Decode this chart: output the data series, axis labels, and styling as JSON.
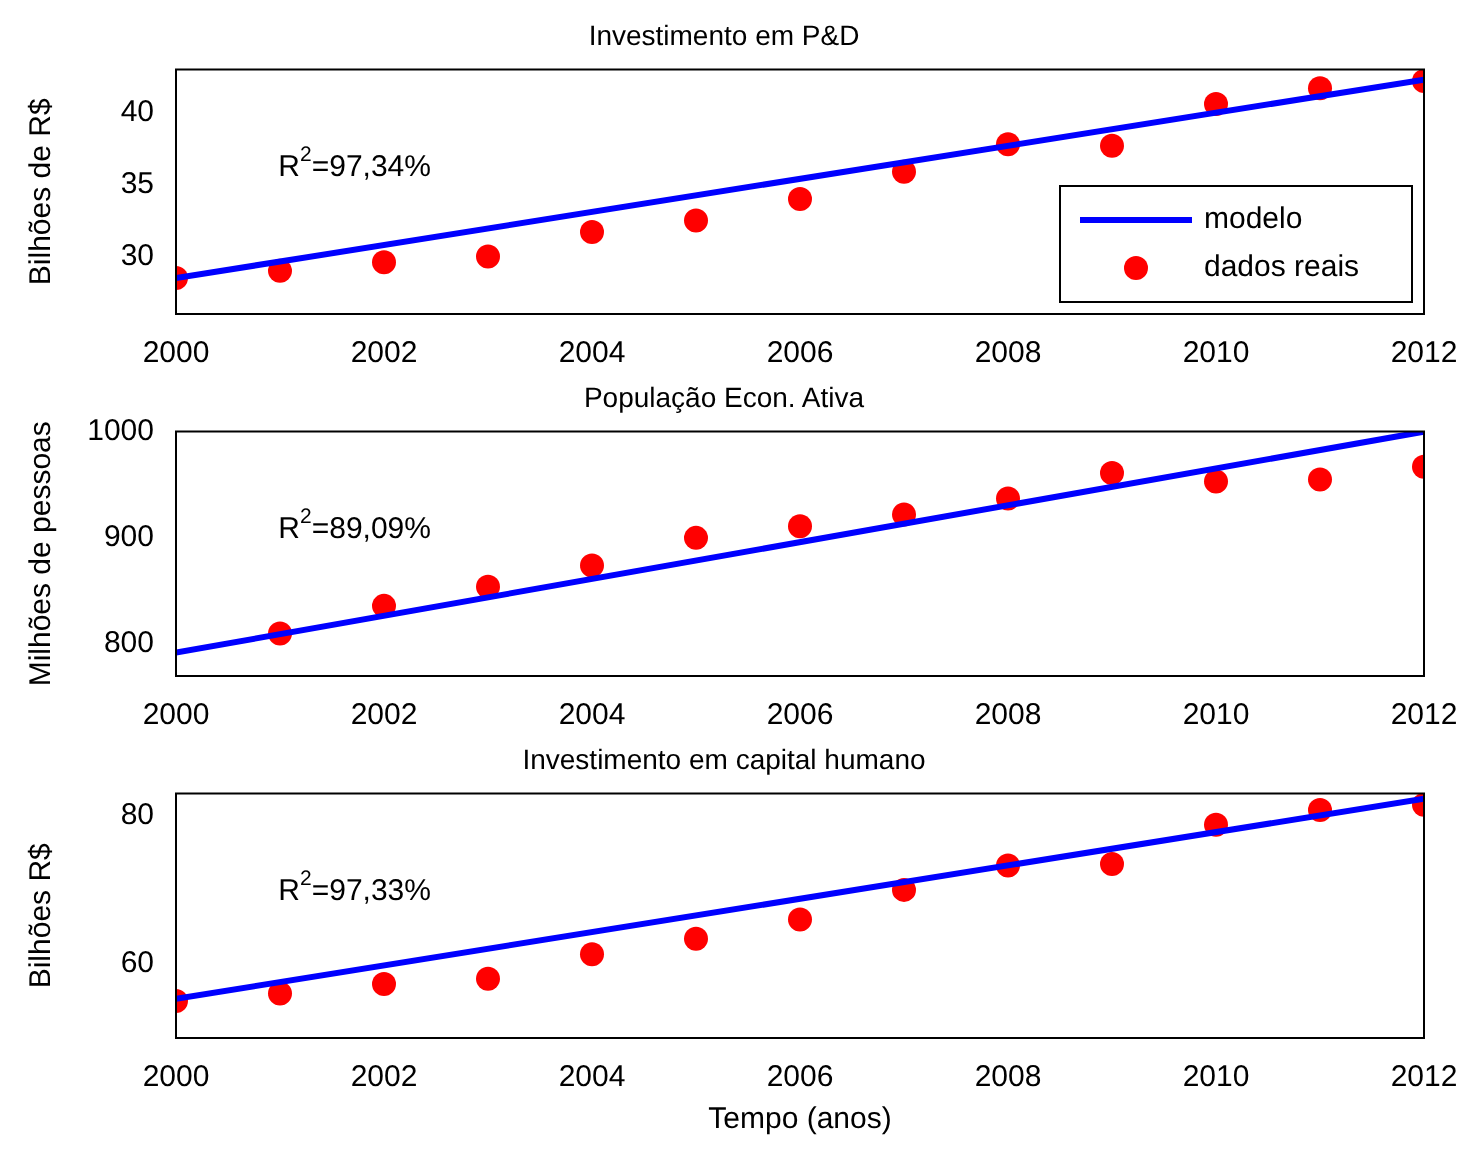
{
  "chart_data": [
    {
      "type": "scatter",
      "title": "Investimento em P&D",
      "ylabel": "Bilhões de R$",
      "x": [
        2000,
        2001,
        2002,
        2003,
        2004,
        2005,
        2006,
        2007,
        2008,
        2009,
        2010,
        2011,
        2012
      ],
      "xlim": [
        2000,
        2012
      ],
      "xticks": [
        2000,
        2002,
        2004,
        2006,
        2008,
        2010,
        2012
      ],
      "ylim": [
        26,
        43
      ],
      "yticks": [
        30,
        35,
        40
      ],
      "grid": false,
      "legend": "bottom right",
      "annotations": [
        "R$^{2}$=97,34%"
      ],
      "series": [
        {
          "name": "modelo",
          "type": "line",
          "color": "#0000ff",
          "marker": "none",
          "line_style": "solid",
          "x": [
            2000,
            2012
          ],
          "values": [
            28.5,
            42.3
          ]
        },
        {
          "name": "dados reais",
          "type": "scatter",
          "color": "#ff0000",
          "marker": "circle",
          "values": [
            28.5,
            29,
            29.6,
            30,
            31.7,
            32.5,
            34,
            35.9,
            37.8,
            37.7,
            40.6,
            41.7,
            42.2
          ]
        }
      ]
    },
    {
      "type": "scatter",
      "title": "População Econ. Ativa",
      "ylabel": "Milhões de pessoas",
      "xlim": [
        2000,
        2012
      ],
      "xticks": [
        2000,
        2002,
        2004,
        2006,
        2008,
        2010,
        2012
      ],
      "ylim": [
        770,
        1000
      ],
      "yticks": [
        800,
        900,
        1000
      ],
      "grid": false,
      "annotations": [
        "R$^{2}$=89,09%"
      ],
      "series": [
        {
          "type": "line",
          "color": "#0000ff",
          "marker": "none",
          "line_style": "solid",
          "x": [
            2000,
            2012
          ],
          "values": [
            792,
            1000
          ]
        },
        {
          "type": "scatter",
          "color": "#ff0000",
          "marker": "circle",
          "x": [
            2001,
            2002,
            2003,
            2004,
            2005,
            2006,
            2007,
            2008,
            2009,
            2010,
            2011,
            2012
          ],
          "values": [
            810,
            836,
            854,
            874,
            900,
            911,
            922,
            937,
            961,
            953,
            955,
            967
          ]
        }
      ]
    },
    {
      "type": "scatter",
      "title": "Investimento em capital humano",
      "ylabel": "Bilhões R$",
      "xlabel": "Tempo (anos)",
      "x": [
        2000,
        2001,
        2002,
        2003,
        2004,
        2005,
        2006,
        2007,
        2008,
        2009,
        2010,
        2011,
        2012
      ],
      "xlim": [
        2000,
        2012
      ],
      "xticks": [
        2000,
        2002,
        2004,
        2006,
        2008,
        2010,
        2012
      ],
      "ylim": [
        50,
        83
      ],
      "yticks": [
        60,
        80
      ],
      "grid": false,
      "annotations": [
        "R$^{2}$=97,33%"
      ],
      "series": [
        {
          "type": "line",
          "color": "#0000ff",
          "marker": "none",
          "line_style": "solid",
          "x": [
            2000,
            2012
          ],
          "values": [
            55.3,
            82.3
          ]
        },
        {
          "type": "scatter",
          "color": "#ff0000",
          "marker": "circle",
          "values": [
            55,
            56,
            57.3,
            58,
            61.3,
            63.4,
            66,
            70,
            73.3,
            73.5,
            78.8,
            80.8,
            81.5
          ]
        }
      ]
    }
  ]
}
